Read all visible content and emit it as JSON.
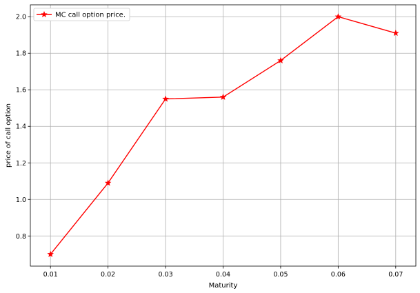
{
  "chart_data": {
    "type": "line",
    "title": "",
    "xlabel": "Maturity",
    "ylabel": "price of call option",
    "x": [
      0.01,
      0.02,
      0.03,
      0.04,
      0.05,
      0.06,
      0.07
    ],
    "x_tick_labels": [
      "0.01",
      "0.02",
      "0.03",
      "0.04",
      "0.05",
      "0.06",
      "0.07"
    ],
    "y_ticks": [
      0.8,
      1.0,
      1.2,
      1.4,
      1.6,
      1.8,
      2.0
    ],
    "y_tick_labels": [
      "0.8",
      "1.0",
      "1.2",
      "1.4",
      "1.6",
      "1.8",
      "2.0"
    ],
    "xlim": [
      0.0065,
      0.0735
    ],
    "ylim": [
      0.635,
      2.065
    ],
    "grid": true,
    "legend": {
      "placement": "top-left"
    },
    "series": [
      {
        "name": "MC call option price.",
        "color": "#ff0000",
        "marker": "star",
        "values": [
          0.7,
          1.09,
          1.55,
          1.56,
          1.76,
          2.0,
          1.91
        ]
      }
    ]
  }
}
